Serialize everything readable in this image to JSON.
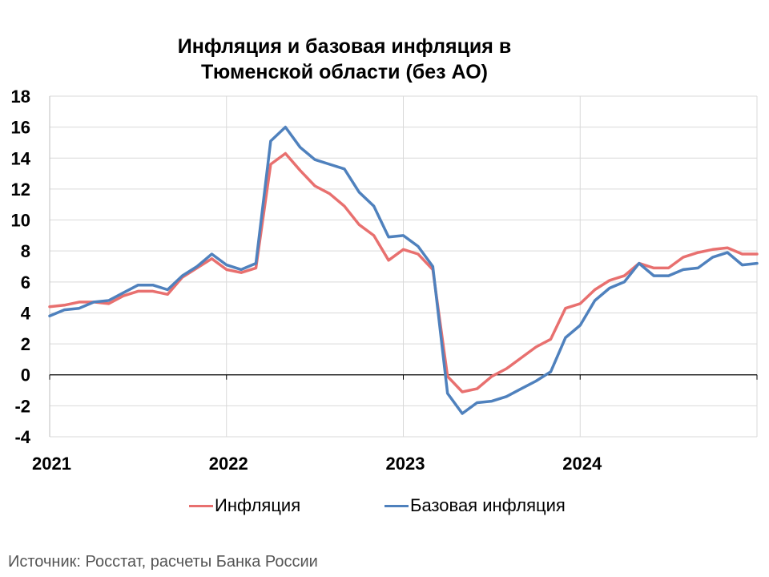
{
  "chart_data": {
    "type": "line",
    "title_lines": [
      "Инфляция и базовая инфляция в",
      "Тюменской области (без АО)"
    ],
    "xlabel": "",
    "ylabel": "",
    "ylim": [
      -4,
      18
    ],
    "yticks": [
      -4,
      -2,
      0,
      2,
      4,
      6,
      8,
      10,
      12,
      14,
      16,
      18
    ],
    "xlim": [
      0,
      48
    ],
    "xticks": [
      {
        "pos": 0,
        "label": "2021"
      },
      {
        "pos": 12,
        "label": "2022"
      },
      {
        "pos": 24,
        "label": "2023"
      },
      {
        "pos": 36,
        "label": "2024"
      }
    ],
    "grid": true,
    "legend_position": "bottom",
    "series": [
      {
        "name": "Инфляция",
        "color": "#E8706F",
        "values": [
          4.4,
          4.5,
          4.7,
          4.7,
          4.6,
          5.1,
          5.4,
          5.4,
          5.2,
          6.3,
          6.9,
          7.5,
          6.8,
          6.6,
          6.9,
          13.6,
          14.3,
          13.2,
          12.2,
          11.7,
          10.9,
          9.7,
          9.0,
          7.4,
          8.1,
          7.8,
          6.8,
          -0.1,
          -1.1,
          -0.9,
          -0.1,
          0.4,
          1.1,
          1.8,
          2.3,
          4.3,
          4.6,
          5.5,
          6.1,
          6.4,
          7.2,
          6.9,
          6.9,
          7.6,
          7.9,
          8.1,
          8.2,
          7.8,
          7.8
        ]
      },
      {
        "name": "Базовая инфляция",
        "color": "#4F81BD",
        "values": [
          3.8,
          4.2,
          4.3,
          4.7,
          4.8,
          5.3,
          5.8,
          5.8,
          5.5,
          6.4,
          7.0,
          7.8,
          7.1,
          6.8,
          7.2,
          15.1,
          16.0,
          14.7,
          13.9,
          13.6,
          13.3,
          11.8,
          10.9,
          8.9,
          9.0,
          8.3,
          7.0,
          -1.2,
          -2.5,
          -1.8,
          -1.7,
          -1.4,
          -0.9,
          -0.4,
          0.2,
          2.4,
          3.2,
          4.8,
          5.6,
          6.0,
          7.2,
          6.4,
          6.4,
          6.8,
          6.9,
          7.6,
          7.9,
          7.1,
          7.2
        ]
      }
    ]
  },
  "source_note": "Источник: Росстат, расчеты Банка России"
}
